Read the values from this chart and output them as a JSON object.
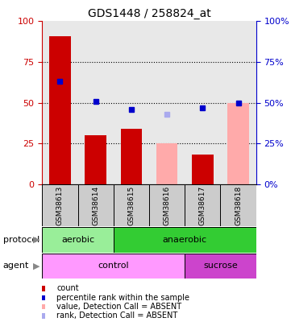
{
  "title": "GDS1448 / 258824_at",
  "samples": [
    "GSM38613",
    "GSM38614",
    "GSM38615",
    "GSM38616",
    "GSM38617",
    "GSM38618"
  ],
  "bar_values": [
    91,
    30,
    34,
    25,
    18,
    50
  ],
  "bar_absent": [
    false,
    false,
    false,
    true,
    false,
    true
  ],
  "blue_dot_values": [
    63,
    51,
    46,
    43,
    47,
    50
  ],
  "blue_dot_absent": [
    false,
    false,
    false,
    true,
    false,
    false
  ],
  "protocol_groups": [
    {
      "label": "aerobic",
      "start": 0,
      "end": 2,
      "color": "#99ee99"
    },
    {
      "label": "anaerobic",
      "start": 2,
      "end": 6,
      "color": "#33cc33"
    }
  ],
  "agent_groups": [
    {
      "label": "control",
      "start": 0,
      "end": 4,
      "color": "#ff99ff"
    },
    {
      "label": "sucrose",
      "start": 4,
      "end": 6,
      "color": "#cc44cc"
    }
  ],
  "ylim": [
    0,
    100
  ],
  "yticks": [
    0,
    25,
    50,
    75,
    100
  ],
  "left_axis_color": "#cc0000",
  "right_axis_color": "#0000cc",
  "bar_color_normal": "#cc0000",
  "bar_color_absent": "#ffaaaa",
  "dot_color_normal": "#0000cc",
  "dot_color_absent": "#aaaaee",
  "plot_bg": "#e8e8e8",
  "legend_items": [
    {
      "color": "#cc0000",
      "label": "count",
      "shape": "s"
    },
    {
      "color": "#0000cc",
      "label": "percentile rank within the sample",
      "shape": "s"
    },
    {
      "color": "#ffaaaa",
      "label": "value, Detection Call = ABSENT",
      "shape": "s"
    },
    {
      "color": "#aaaaee",
      "label": "rank, Detection Call = ABSENT",
      "shape": "s"
    }
  ]
}
